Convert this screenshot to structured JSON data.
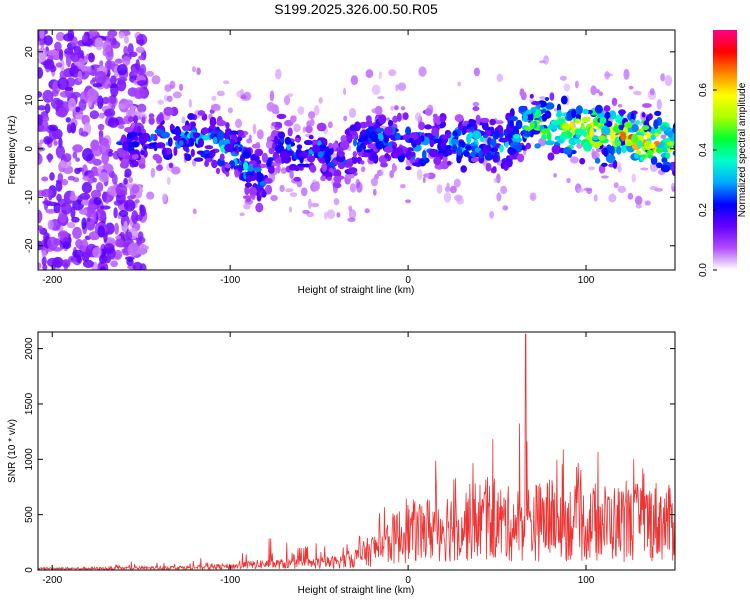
{
  "title": "S199.2025.326.00.50.R05",
  "chart_data": [
    {
      "type": "heatmap",
      "xlabel": "Height of straight line (km)",
      "ylabel": "Frequency (Hz)",
      "xlim": [
        -208,
        150
      ],
      "ylim": [
        -25,
        24.5
      ],
      "xticks": [
        -200,
        -100,
        0,
        100
      ],
      "yticks": [
        -20,
        -10,
        0,
        10,
        20
      ],
      "colorbar": {
        "label": "Normalized spectral amplitude",
        "range": [
          0.0,
          0.8
        ],
        "ticks": [
          0.0,
          0.2,
          0.4,
          0.6
        ],
        "colors": [
          "#ffffff",
          "#b24cff",
          "#6600ff",
          "#0000ff",
          "#00aaff",
          "#00ffcc",
          "#00ff33",
          "#aaff00",
          "#ffff00",
          "#ff8800",
          "#ff0000",
          "#ff0088"
        ]
      },
      "ridge": {
        "description_free": true,
        "x": [
          -160,
          -140,
          -120,
          -100,
          -90,
          -80,
          -75,
          -70,
          -60,
          -50,
          -40,
          -30,
          -20,
          -10,
          0,
          10,
          20,
          30,
          40,
          50,
          60,
          70,
          80,
          90,
          100,
          110,
          120,
          130,
          140,
          150
        ],
        "center_hz": [
          1,
          2,
          2,
          0,
          -4,
          -8,
          1,
          2,
          -2,
          0,
          -4,
          1,
          2,
          2,
          1,
          1,
          2,
          1,
          2,
          0,
          3,
          5,
          5,
          4,
          4,
          3,
          3,
          2,
          2,
          1
        ],
        "peak_amp": [
          0.25,
          0.3,
          0.35,
          0.35,
          0.35,
          0.3,
          0.2,
          0.3,
          0.25,
          0.3,
          0.25,
          0.3,
          0.3,
          0.3,
          0.35,
          0.35,
          0.3,
          0.4,
          0.35,
          0.35,
          0.4,
          0.5,
          0.55,
          0.6,
          0.7,
          0.7,
          0.65,
          0.7,
          0.75,
          0.6
        ]
      }
    },
    {
      "type": "line",
      "xlabel": "Height of straight line (km)",
      "ylabel": "SNR (10 * v/v)",
      "xlim": [
        -208,
        150
      ],
      "ylim": [
        0,
        2150
      ],
      "xticks": [
        -200,
        -100,
        0,
        100
      ],
      "yticks": [
        0,
        500,
        1000,
        1500,
        2000
      ],
      "color": "#ee3333",
      "envelope": {
        "x": [
          -208,
          -180,
          -150,
          -120,
          -100,
          -90,
          -80,
          -60,
          -40,
          -30,
          -20,
          -10,
          0,
          10,
          20,
          30,
          40,
          50,
          60,
          66,
          70,
          80,
          90,
          100,
          110,
          120,
          130,
          140,
          150
        ],
        "max": [
          40,
          50,
          80,
          100,
          150,
          200,
          300,
          220,
          300,
          350,
          500,
          700,
          900,
          1000,
          1100,
          1150,
          1300,
          1150,
          1000,
          2130,
          1000,
          1250,
          1050,
          1000,
          1100,
          1000,
          1100,
          1200,
          800
        ],
        "typical": [
          15,
          15,
          20,
          25,
          35,
          50,
          60,
          60,
          80,
          120,
          200,
          300,
          380,
          400,
          450,
          450,
          500,
          480,
          450,
          480,
          480,
          500,
          480,
          450,
          480,
          470,
          480,
          500,
          450
        ]
      }
    }
  ]
}
